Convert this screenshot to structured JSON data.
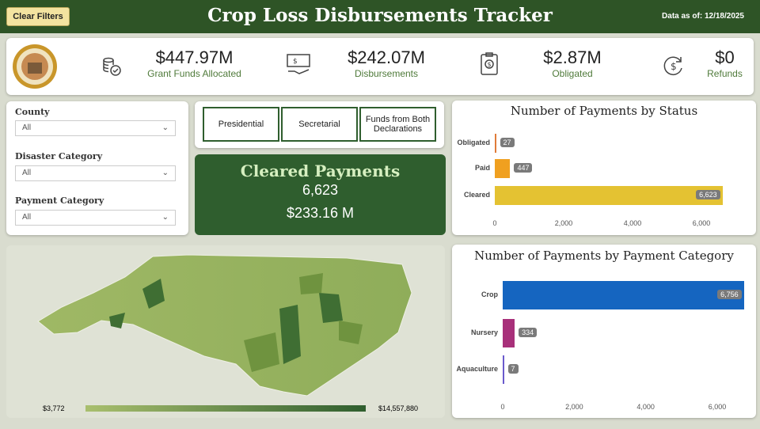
{
  "header": {
    "clear_filters": "Clear Filters",
    "title": "Crop Loss Disbursements Tracker",
    "data_as_of": "Data as of: 12/18/2025"
  },
  "kpis": [
    {
      "value": "$447.97M",
      "label": "Grant Funds Allocated",
      "icon": "coins-icon"
    },
    {
      "value": "$242.07M",
      "label": "Disbursements",
      "icon": "cash-hand-icon"
    },
    {
      "value": "$2.87M",
      "label": "Obligated",
      "icon": "clipboard-dollar-icon"
    },
    {
      "value": "$0",
      "label": "Refunds",
      "icon": "refund-dollar-icon"
    }
  ],
  "filters": [
    {
      "label": "County",
      "value": "All"
    },
    {
      "label": "Disaster Category",
      "value": "All"
    },
    {
      "label": "Payment Category",
      "value": "All"
    }
  ],
  "declarations": [
    "Presidential",
    "Secretarial",
    "Funds from Both Declarations"
  ],
  "cleared": {
    "title": "Cleared Payments",
    "count": "6,623",
    "amount": "$233.16 M"
  },
  "map": {
    "legend_min": "$3,772",
    "legend_max": "$14,557,880",
    "color_low": "#a9bf6e",
    "color_high": "#2f5e2e"
  },
  "chart_data": [
    {
      "type": "bar",
      "orientation": "horizontal",
      "title": "Number of Payments by Status",
      "categories": [
        "Obligated",
        "Paid",
        "Cleared"
      ],
      "values": [
        27,
        447,
        6623
      ],
      "value_labels": [
        "27",
        "447",
        "6,623"
      ],
      "colors": [
        "#e07b39",
        "#f0a020",
        "#e4c232"
      ],
      "xlim": [
        0,
        6623
      ],
      "ticks": [
        "0",
        "2,000",
        "4,000",
        "6,000"
      ],
      "tick_values": [
        0,
        2000,
        4000,
        6000
      ]
    },
    {
      "type": "bar",
      "orientation": "horizontal",
      "title": "Number of Payments by Payment Category",
      "categories": [
        "Crop",
        "Nursery",
        "Aquaculture"
      ],
      "values": [
        6756,
        334,
        7
      ],
      "value_labels": [
        "6,756",
        "334",
        "7"
      ],
      "colors": [
        "#1565c0",
        "#a8307a",
        "#6a5acd"
      ],
      "xlim": [
        0,
        6756
      ],
      "ticks": [
        "0",
        "2,000",
        "4,000",
        "6,000"
      ],
      "tick_values": [
        0,
        2000,
        4000,
        6000
      ]
    }
  ]
}
